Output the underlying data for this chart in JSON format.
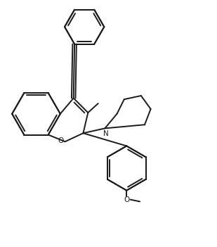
{
  "background_color": "#ffffff",
  "line_color": "#1a1a1a",
  "line_width": 1.4,
  "figsize": [
    3.09,
    3.51
  ],
  "dpi": 100,
  "xlim": [
    0,
    9
  ],
  "ylim": [
    0,
    10.2
  ]
}
